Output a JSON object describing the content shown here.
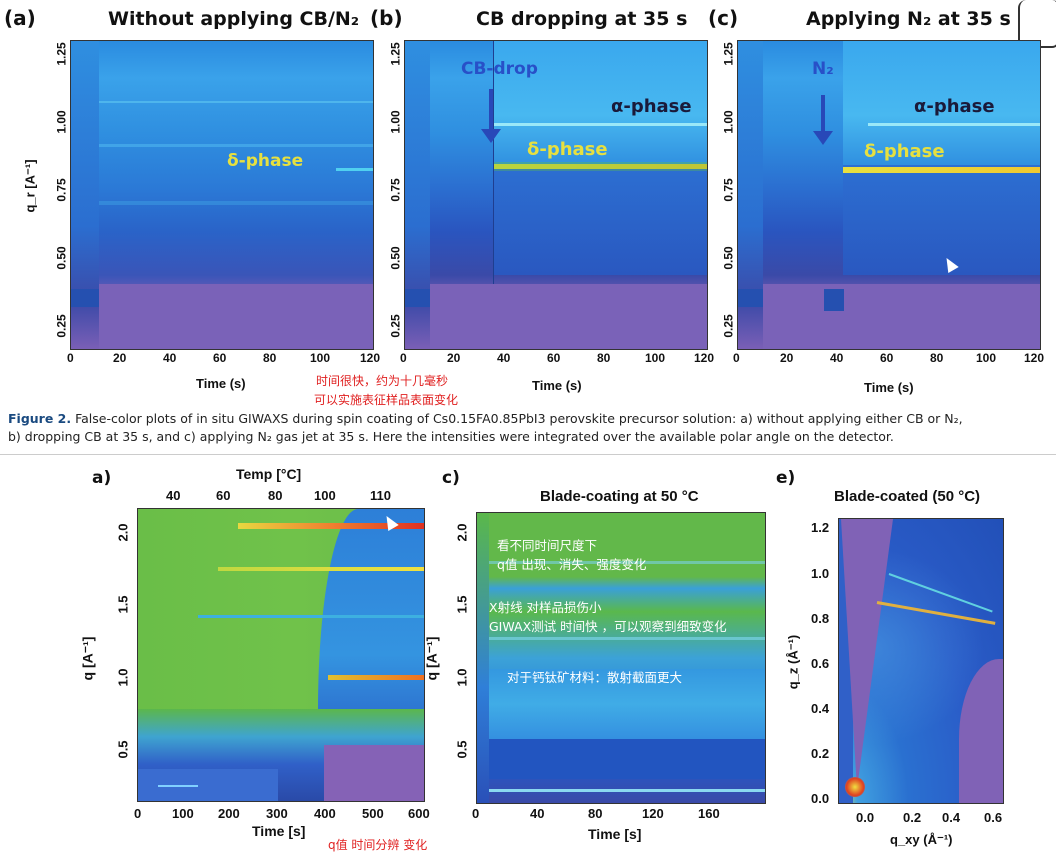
{
  "top": {
    "panels": [
      {
        "label": "(a)",
        "title": "Without applying CB/N₂"
      },
      {
        "label": "(b)",
        "title": "CB dropping at 35 s"
      },
      {
        "label": "(c)",
        "title": "Applying N₂ at 35 s"
      }
    ],
    "y_ticks": [
      "1.25",
      "1.00",
      "0.75",
      "0.50",
      "0.25"
    ],
    "y_title": "q_r [A⁻¹]",
    "x_ticks": [
      "0",
      "20",
      "40",
      "60",
      "80",
      "100",
      "120"
    ],
    "x_title": "Time (s)",
    "annotations": {
      "a_delta": "δ-phase",
      "b_cbdrop": "CB-drop",
      "b_alpha": "α-phase",
      "b_delta": "δ-phase",
      "c_n2": "N₂",
      "c_alpha": "α-phase",
      "c_delta": "δ-phase"
    },
    "red_note_1": "时间很快，约为十几毫秒",
    "red_note_2": "可以实施表征样品表面变化"
  },
  "caption": {
    "label": "Figure 2.",
    "text_line1": "False-color plots of in situ GIWAXS during spin coating of Cs0.15FA0.85PbI3 perovskite precursor solution: a) without applying either CB or N₂,",
    "text_line2": "b) dropping CB at 35 s, and c) applying N₂ gas jet at 35 s. Here the intensities were integrated over the available polar angle on the detector."
  },
  "bottom": {
    "a": {
      "label": "a)",
      "top_title": "Temp [°C]",
      "top_ticks": [
        "40",
        "60",
        "80",
        "100",
        "110"
      ],
      "y_title": "q [A⁻¹]",
      "y_ticks": [
        "2.0",
        "1.5",
        "1.0",
        "0.5"
      ],
      "x_ticks": [
        "0",
        "100",
        "200",
        "300",
        "400",
        "500",
        "600"
      ],
      "x_title": "Time [s]",
      "red_note": "q值 时间分辨 变化"
    },
    "c": {
      "label": "c)",
      "title": "Blade-coating at 50 °C",
      "y_title": "q [A⁻¹]",
      "y_ticks": [
        "2.0",
        "1.5",
        "1.0",
        "0.5"
      ],
      "x_ticks": [
        "0",
        "40",
        "80",
        "120",
        "160"
      ],
      "x_title": "Time [s]",
      "notes": [
        "看不同时间尺度下",
        "q值 出现、消失、强度变化",
        "X射线 对样品损伤小",
        "GIWAX测试 时间快 ，可以观察到细致变化",
        "对于钙钛矿材料：散射截面更大"
      ]
    },
    "e": {
      "label": "e)",
      "title": "Blade-coated  (50 °C)",
      "y_title": "q_z (Å⁻¹)",
      "y_ticks": [
        "1.2",
        "1.0",
        "0.8",
        "0.6",
        "0.4",
        "0.2",
        "0.0"
      ],
      "x_ticks": [
        "0.0",
        "0.2",
        "0.4",
        "0.6"
      ],
      "x_title": "q_xy (Å⁻¹)"
    }
  },
  "colors": {
    "annot_yellow": "#e6e040",
    "annot_dark": "#1a1a3a",
    "annot_blue": "#2850c8",
    "red_note": "#e02020"
  }
}
